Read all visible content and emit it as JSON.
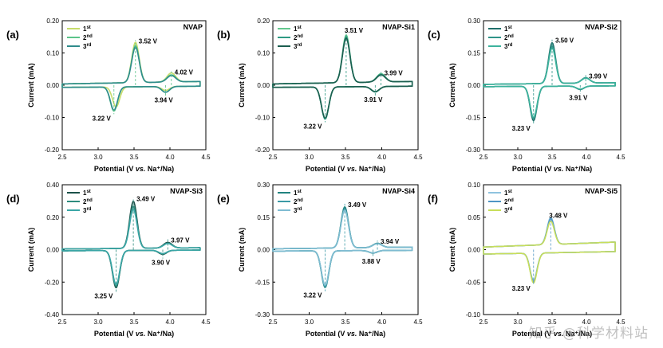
{
  "figure": {
    "watermark": "知乎 @科学材料站"
  },
  "chart_data": [
    {
      "type": "line",
      "panel": "(a)",
      "title": "NVAP",
      "xlabel": "Potential (V vs. Na⁺/Na)",
      "ylabel": "Current (mA)",
      "xlim": [
        2.5,
        4.5
      ],
      "xticks": [
        "2.5",
        "3.0",
        "3.5",
        "4.0",
        "4.5"
      ],
      "ylim": [
        -0.2,
        0.2
      ],
      "yticks": [
        "-0.20",
        "-0.10",
        "0.00",
        "0.10",
        "0.20"
      ],
      "legend": [
        "1st",
        "2nd",
        "3rd"
      ],
      "series": [
        {
          "name": "1st",
          "color": "#c6dc6a",
          "anodic": [
            {
              "v": 3.52,
              "i": 0.125
            },
            {
              "v": 4.02,
              "i": 0.028
            }
          ],
          "cathodic": [
            {
              "v": 3.25,
              "i": -0.062
            },
            {
              "v": 3.94,
              "i": -0.012
            }
          ]
        },
        {
          "name": "2nd",
          "color": "#5cc489",
          "anodic": [
            {
              "v": 3.52,
              "i": 0.115
            },
            {
              "v": 4.02,
              "i": 0.022
            }
          ],
          "cathodic": [
            {
              "v": 3.22,
              "i": -0.075
            },
            {
              "v": 3.94,
              "i": -0.018
            }
          ]
        },
        {
          "name": "3rd",
          "color": "#2f8c8c",
          "anodic": [
            {
              "v": 3.52,
              "i": 0.11
            },
            {
              "v": 4.02,
              "i": 0.02
            }
          ],
          "cathodic": [
            {
              "v": 3.22,
              "i": -0.072
            },
            {
              "v": 3.94,
              "i": -0.018
            }
          ]
        }
      ],
      "annotations": [
        {
          "text": "3.52 V",
          "x": 3.52,
          "y": 0.125,
          "place": "right"
        },
        {
          "text": "4.02 V",
          "x": 4.02,
          "y": 0.028,
          "place": "right"
        },
        {
          "text": "3.94 V",
          "x": 3.94,
          "y": -0.018,
          "place": "below"
        },
        {
          "text": "3.22 V",
          "x": 3.22,
          "y": -0.075,
          "place": "below-left"
        }
      ]
    },
    {
      "type": "line",
      "panel": "(b)",
      "title": "NVAP-Si1",
      "xlabel": "Potential (V vs. Na⁺/Na)",
      "ylabel": "Current (mA)",
      "xlim": [
        2.5,
        4.5
      ],
      "xticks": [
        "2.5",
        "3.0",
        "3.5",
        "4.0",
        "4.5"
      ],
      "ylim": [
        -0.2,
        0.2
      ],
      "yticks": [
        "-0.20",
        "-0.10",
        "0.00",
        "0.10",
        "0.20"
      ],
      "legend": [
        "1st",
        "2nd",
        "3rd"
      ],
      "series": [
        {
          "name": "1st",
          "color": "#63c78e",
          "anodic": [
            {
              "v": 3.51,
              "i": 0.148
            },
            {
              "v": 3.99,
              "i": 0.026
            }
          ],
          "cathodic": [
            {
              "v": 3.22,
              "i": -0.098
            },
            {
              "v": 3.91,
              "i": -0.016
            }
          ]
        },
        {
          "name": "2nd",
          "color": "#2e9a83",
          "anodic": [
            {
              "v": 3.51,
              "i": 0.142
            },
            {
              "v": 3.99,
              "i": 0.024
            }
          ],
          "cathodic": [
            {
              "v": 3.22,
              "i": -0.1
            },
            {
              "v": 3.91,
              "i": -0.017
            }
          ]
        },
        {
          "name": "3rd",
          "color": "#1b5e4f",
          "anodic": [
            {
              "v": 3.51,
              "i": 0.138
            },
            {
              "v": 3.99,
              "i": 0.022
            }
          ],
          "cathodic": [
            {
              "v": 3.22,
              "i": -0.097
            },
            {
              "v": 3.91,
              "i": -0.016
            }
          ]
        }
      ],
      "annotations": [
        {
          "text": "3.51 V",
          "x": 3.51,
          "y": 0.148,
          "place": "above"
        },
        {
          "text": "3.99 V",
          "x": 3.99,
          "y": 0.026,
          "place": "right"
        },
        {
          "text": "3.91 V",
          "x": 3.91,
          "y": -0.017,
          "place": "below"
        },
        {
          "text": "3.22 V",
          "x": 3.22,
          "y": -0.1,
          "place": "below-left"
        }
      ]
    },
    {
      "type": "line",
      "panel": "(c)",
      "title": "NVAP-Si2",
      "xlabel": "Potential (V vs. Na⁺/Na)",
      "ylabel": "Current (mA)",
      "xlim": [
        2.5,
        4.5
      ],
      "xticks": [
        "2.5",
        "3.0",
        "3.5",
        "4.0",
        "4.5"
      ],
      "ylim": [
        -0.3,
        0.3
      ],
      "yticks": [
        "-0.30",
        "-0.15",
        "0.00",
        "0.15",
        "0.30"
      ],
      "legend": [
        "1st",
        "2nd",
        "3rd"
      ],
      "series": [
        {
          "name": "1st",
          "color": "#1f6f6a",
          "anodic": [
            {
              "v": 3.5,
              "i": 0.19
            },
            {
              "v": 3.99,
              "i": 0.025
            }
          ],
          "cathodic": [
            {
              "v": 3.23,
              "i": -0.16
            },
            {
              "v": 3.91,
              "i": -0.016
            }
          ]
        },
        {
          "name": "2nd",
          "color": "#2f9488",
          "anodic": [
            {
              "v": 3.5,
              "i": 0.175
            },
            {
              "v": 3.99,
              "i": 0.024
            }
          ],
          "cathodic": [
            {
              "v": 3.23,
              "i": -0.15
            },
            {
              "v": 3.91,
              "i": -0.015
            }
          ]
        },
        {
          "name": "3rd",
          "color": "#3db39d",
          "anodic": [
            {
              "v": 3.5,
              "i": 0.165
            },
            {
              "v": 3.99,
              "i": 0.023
            }
          ],
          "cathodic": [
            {
              "v": 3.23,
              "i": -0.145
            },
            {
              "v": 3.91,
              "i": -0.014
            }
          ]
        }
      ],
      "annotations": [
        {
          "text": "3.50 V",
          "x": 3.5,
          "y": 0.19,
          "place": "right"
        },
        {
          "text": "3.99 V",
          "x": 3.99,
          "y": 0.025,
          "place": "right"
        },
        {
          "text": "3.91 V",
          "x": 3.91,
          "y": -0.016,
          "place": "below"
        },
        {
          "text": "3.23 V",
          "x": 3.23,
          "y": -0.16,
          "place": "below-left"
        }
      ]
    },
    {
      "type": "line",
      "panel": "(d)",
      "title": "NVAP-Si3",
      "xlabel": "Potential (V vs. Na⁺/Na)",
      "ylabel": "Current (mA)",
      "xlim": [
        2.5,
        4.5
      ],
      "xticks": [
        "2.5",
        "3.0",
        "3.5",
        "4.0",
        "4.5"
      ],
      "ylim": [
        -0.4,
        0.4
      ],
      "yticks": [
        "-0.40",
        "-0.20",
        "0.00",
        "0.20",
        "0.40"
      ],
      "legend": [
        "1st",
        "2nd",
        "3rd"
      ],
      "series": [
        {
          "name": "1st",
          "color": "#1b5149",
          "anodic": [
            {
              "v": 3.49,
              "i": 0.29
            },
            {
              "v": 3.97,
              "i": 0.035
            }
          ],
          "cathodic": [
            {
              "v": 3.25,
              "i": -0.23
            },
            {
              "v": 3.9,
              "i": -0.025
            }
          ]
        },
        {
          "name": "2nd",
          "color": "#2e8c7e",
          "anodic": [
            {
              "v": 3.49,
              "i": 0.26
            },
            {
              "v": 3.97,
              "i": 0.03
            }
          ],
          "cathodic": [
            {
              "v": 3.25,
              "i": -0.22
            },
            {
              "v": 3.9,
              "i": -0.022
            }
          ]
        },
        {
          "name": "3rd",
          "color": "#3aa6a6",
          "anodic": [
            {
              "v": 3.49,
              "i": 0.24
            },
            {
              "v": 3.97,
              "i": 0.028
            }
          ],
          "cathodic": [
            {
              "v": 3.25,
              "i": -0.21
            },
            {
              "v": 3.9,
              "i": -0.02
            }
          ]
        }
      ],
      "annotations": [
        {
          "text": "3.49 V",
          "x": 3.49,
          "y": 0.29,
          "place": "right"
        },
        {
          "text": "3.97 V",
          "x": 3.97,
          "y": 0.035,
          "place": "right"
        },
        {
          "text": "3.90 V",
          "x": 3.9,
          "y": -0.025,
          "place": "below"
        },
        {
          "text": "3.25 V",
          "x": 3.25,
          "y": -0.23,
          "place": "below-left"
        }
      ]
    },
    {
      "type": "line",
      "panel": "(e)",
      "title": "NVAP-Si4",
      "xlabel": "Potential (V vs. Na⁺/Na)",
      "ylabel": "Current (mA)",
      "xlim": [
        2.5,
        4.5
      ],
      "xticks": [
        "2.5",
        "3.0",
        "3.5",
        "4.0",
        "4.5"
      ],
      "ylim": [
        -0.3,
        0.3
      ],
      "yticks": [
        "-0.30",
        "-0.15",
        "0.00",
        "0.15",
        "0.30"
      ],
      "legend": [
        "1st",
        "2nd",
        "3rd"
      ],
      "series": [
        {
          "name": "1st",
          "color": "#21837f",
          "anodic": [
            {
              "v": 3.49,
              "i": 0.19
            },
            {
              "v": 3.94,
              "i": 0.02
            }
          ],
          "cathodic": [
            {
              "v": 3.22,
              "i": -0.17
            },
            {
              "v": 3.88,
              "i": -0.012
            }
          ]
        },
        {
          "name": "2nd",
          "color": "#3b9aa6",
          "anodic": [
            {
              "v": 3.49,
              "i": 0.18
            },
            {
              "v": 3.94,
              "i": 0.018
            }
          ],
          "cathodic": [
            {
              "v": 3.22,
              "i": -0.165
            },
            {
              "v": 3.88,
              "i": -0.011
            }
          ]
        },
        {
          "name": "3rd",
          "color": "#7fbcd2",
          "anodic": [
            {
              "v": 3.49,
              "i": 0.175
            },
            {
              "v": 3.94,
              "i": 0.018
            }
          ],
          "cathodic": [
            {
              "v": 3.22,
              "i": -0.16
            },
            {
              "v": 3.88,
              "i": -0.011
            }
          ]
        }
      ],
      "annotations": [
        {
          "text": "3.49 V",
          "x": 3.49,
          "y": 0.19,
          "place": "right"
        },
        {
          "text": "3.94 V",
          "x": 3.94,
          "y": 0.02,
          "place": "right"
        },
        {
          "text": "3.88 V",
          "x": 3.88,
          "y": -0.012,
          "place": "below"
        },
        {
          "text": "3.22 V",
          "x": 3.22,
          "y": -0.17,
          "place": "below-left"
        }
      ]
    },
    {
      "type": "line",
      "panel": "(f)",
      "title": "NVAP-Si5",
      "xlabel": "Potential (V vs. Na⁺/Na)",
      "ylabel": "Current (mA)",
      "xlim": [
        2.5,
        4.5
      ],
      "xticks": [
        "2.5",
        "3.0",
        "3.5",
        "4.0",
        "4.5"
      ],
      "ylim": [
        -0.1,
        0.1
      ],
      "yticks": [
        "-0.10",
        "-0.05",
        "0.00",
        "0.05",
        "0.10"
      ],
      "legend": [
        "1st",
        "2nd",
        "3rd"
      ],
      "series": [
        {
          "name": "1st",
          "color": "#8fc3df",
          "anodic": [
            {
              "v": 3.48,
              "i": 0.042
            }
          ],
          "cathodic": [
            {
              "v": 3.23,
              "i": -0.042
            }
          ]
        },
        {
          "name": "2nd",
          "color": "#4f95c4",
          "anodic": [
            {
              "v": 3.48,
              "i": 0.04
            }
          ],
          "cathodic": [
            {
              "v": 3.23,
              "i": -0.044
            }
          ]
        },
        {
          "name": "3rd",
          "color": "#c8de5a",
          "anodic": [
            {
              "v": 3.48,
              "i": 0.036
            }
          ],
          "cathodic": [
            {
              "v": 3.23,
              "i": -0.046
            }
          ]
        }
      ],
      "annotations": [
        {
          "text": "3.48 V",
          "x": 3.48,
          "y": 0.042,
          "place": "above"
        },
        {
          "text": "3.23 V",
          "x": 3.23,
          "y": -0.046,
          "place": "below-left"
        }
      ]
    }
  ]
}
